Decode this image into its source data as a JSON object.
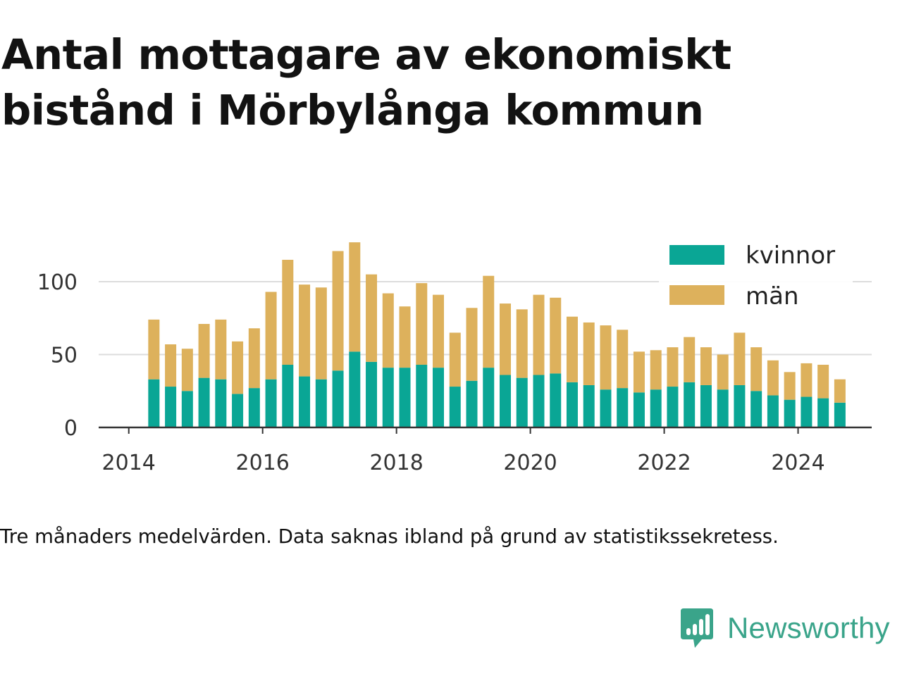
{
  "title_lines": [
    "Antal mottagare av ekonomiskt",
    "bistånd i Mörbylånga kommun"
  ],
  "footnote": "Tre månaders medelvärden. Data saknas ibland på grund av statistikssekretess.",
  "brand": {
    "name": "Newsworthy",
    "color": "#3aa48a",
    "icon": "bar-chart-speech-bubble-icon"
  },
  "colors": {
    "kvinnor": "#0aa695",
    "man": "#ddb15c",
    "grid": "#dcdcdc",
    "axis": "#333333"
  },
  "chart_data": {
    "type": "bar",
    "stacked": true,
    "x_kind": "quarterly",
    "x": [
      "2014-Q2",
      "2014-Q3",
      "2014-Q4",
      "2015-Q1",
      "2015-Q2",
      "2015-Q3",
      "2015-Q4",
      "2016-Q1",
      "2016-Q2",
      "2016-Q3",
      "2016-Q4",
      "2017-Q1",
      "2017-Q2",
      "2017-Q3",
      "2017-Q4",
      "2018-Q1",
      "2018-Q2",
      "2018-Q3",
      "2018-Q4",
      "2019-Q1",
      "2019-Q2",
      "2019-Q3",
      "2019-Q4",
      "2020-Q1",
      "2020-Q2",
      "2020-Q3",
      "2020-Q4",
      "2021-Q1",
      "2021-Q2",
      "2021-Q3",
      "2021-Q4",
      "2022-Q1",
      "2022-Q2",
      "2022-Q3",
      "2022-Q4",
      "2023-Q1",
      "2023-Q2",
      "2023-Q3",
      "2023-Q4",
      "2024-Q1",
      "2024-Q2",
      "2024-Q3"
    ],
    "series": [
      {
        "name": "kvinnor",
        "values": [
          33,
          28,
          25,
          34,
          33,
          23,
          27,
          33,
          43,
          35,
          33,
          39,
          52,
          45,
          41,
          41,
          43,
          41,
          28,
          32,
          41,
          36,
          34,
          36,
          37,
          31,
          29,
          26,
          27,
          24,
          26,
          28,
          31,
          29,
          26,
          29,
          25,
          22,
          19,
          21,
          20,
          17
        ]
      },
      {
        "name": "män",
        "values": [
          41,
          29,
          29,
          37,
          41,
          36,
          41,
          60,
          72,
          63,
          63,
          82,
          75,
          60,
          51,
          42,
          56,
          50,
          37,
          50,
          63,
          49,
          47,
          55,
          52,
          45,
          43,
          44,
          40,
          28,
          27,
          27,
          31,
          26,
          24,
          36,
          30,
          24,
          19,
          23,
          23,
          16
        ]
      }
    ],
    "yticks": [
      0,
      50,
      100
    ],
    "xticks": [
      "2014",
      "2016",
      "2018",
      "2020",
      "2022",
      "2024"
    ],
    "ylim": [
      0,
      130
    ],
    "xlim_years": [
      2013.55,
      2025.1
    ],
    "grid": "horizontal",
    "legend_position": "top-right"
  }
}
